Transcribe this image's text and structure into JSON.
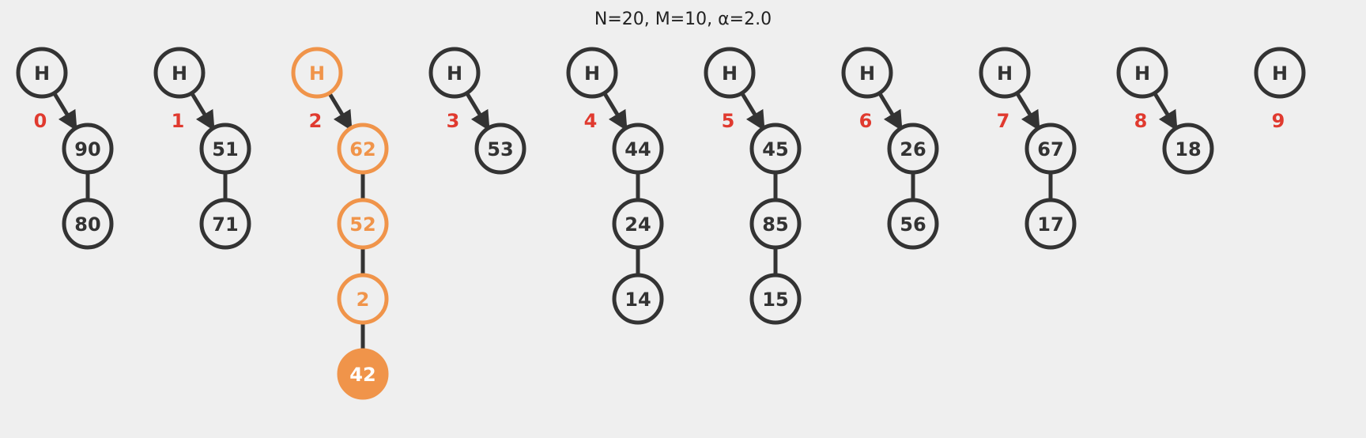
{
  "title": "N=20, M=10, α=2.0",
  "head_label": "H",
  "colors": {
    "background": "#efefef",
    "node_stroke": "#333333",
    "node_fill": "#efefef",
    "text": "#333333",
    "index_label": "#e03a2f",
    "highlight": "#f0944a",
    "highlight_fill": "#f0944a",
    "highlight_text": "#ffffff"
  },
  "buckets": [
    {
      "index": "0",
      "values": [
        "90",
        "80"
      ]
    },
    {
      "index": "1",
      "values": [
        "51",
        "71"
      ]
    },
    {
      "index": "2",
      "values": [
        "62",
        "52",
        "2",
        "42"
      ],
      "highlighted": true,
      "active_value": "42"
    },
    {
      "index": "3",
      "values": [
        "53"
      ]
    },
    {
      "index": "4",
      "values": [
        "44",
        "24",
        "14"
      ]
    },
    {
      "index": "5",
      "values": [
        "45",
        "85",
        "15"
      ]
    },
    {
      "index": "6",
      "values": [
        "26",
        "56"
      ]
    },
    {
      "index": "7",
      "values": [
        "67",
        "17"
      ]
    },
    {
      "index": "8",
      "values": [
        "18"
      ]
    },
    {
      "index": "9",
      "values": []
    }
  ]
}
